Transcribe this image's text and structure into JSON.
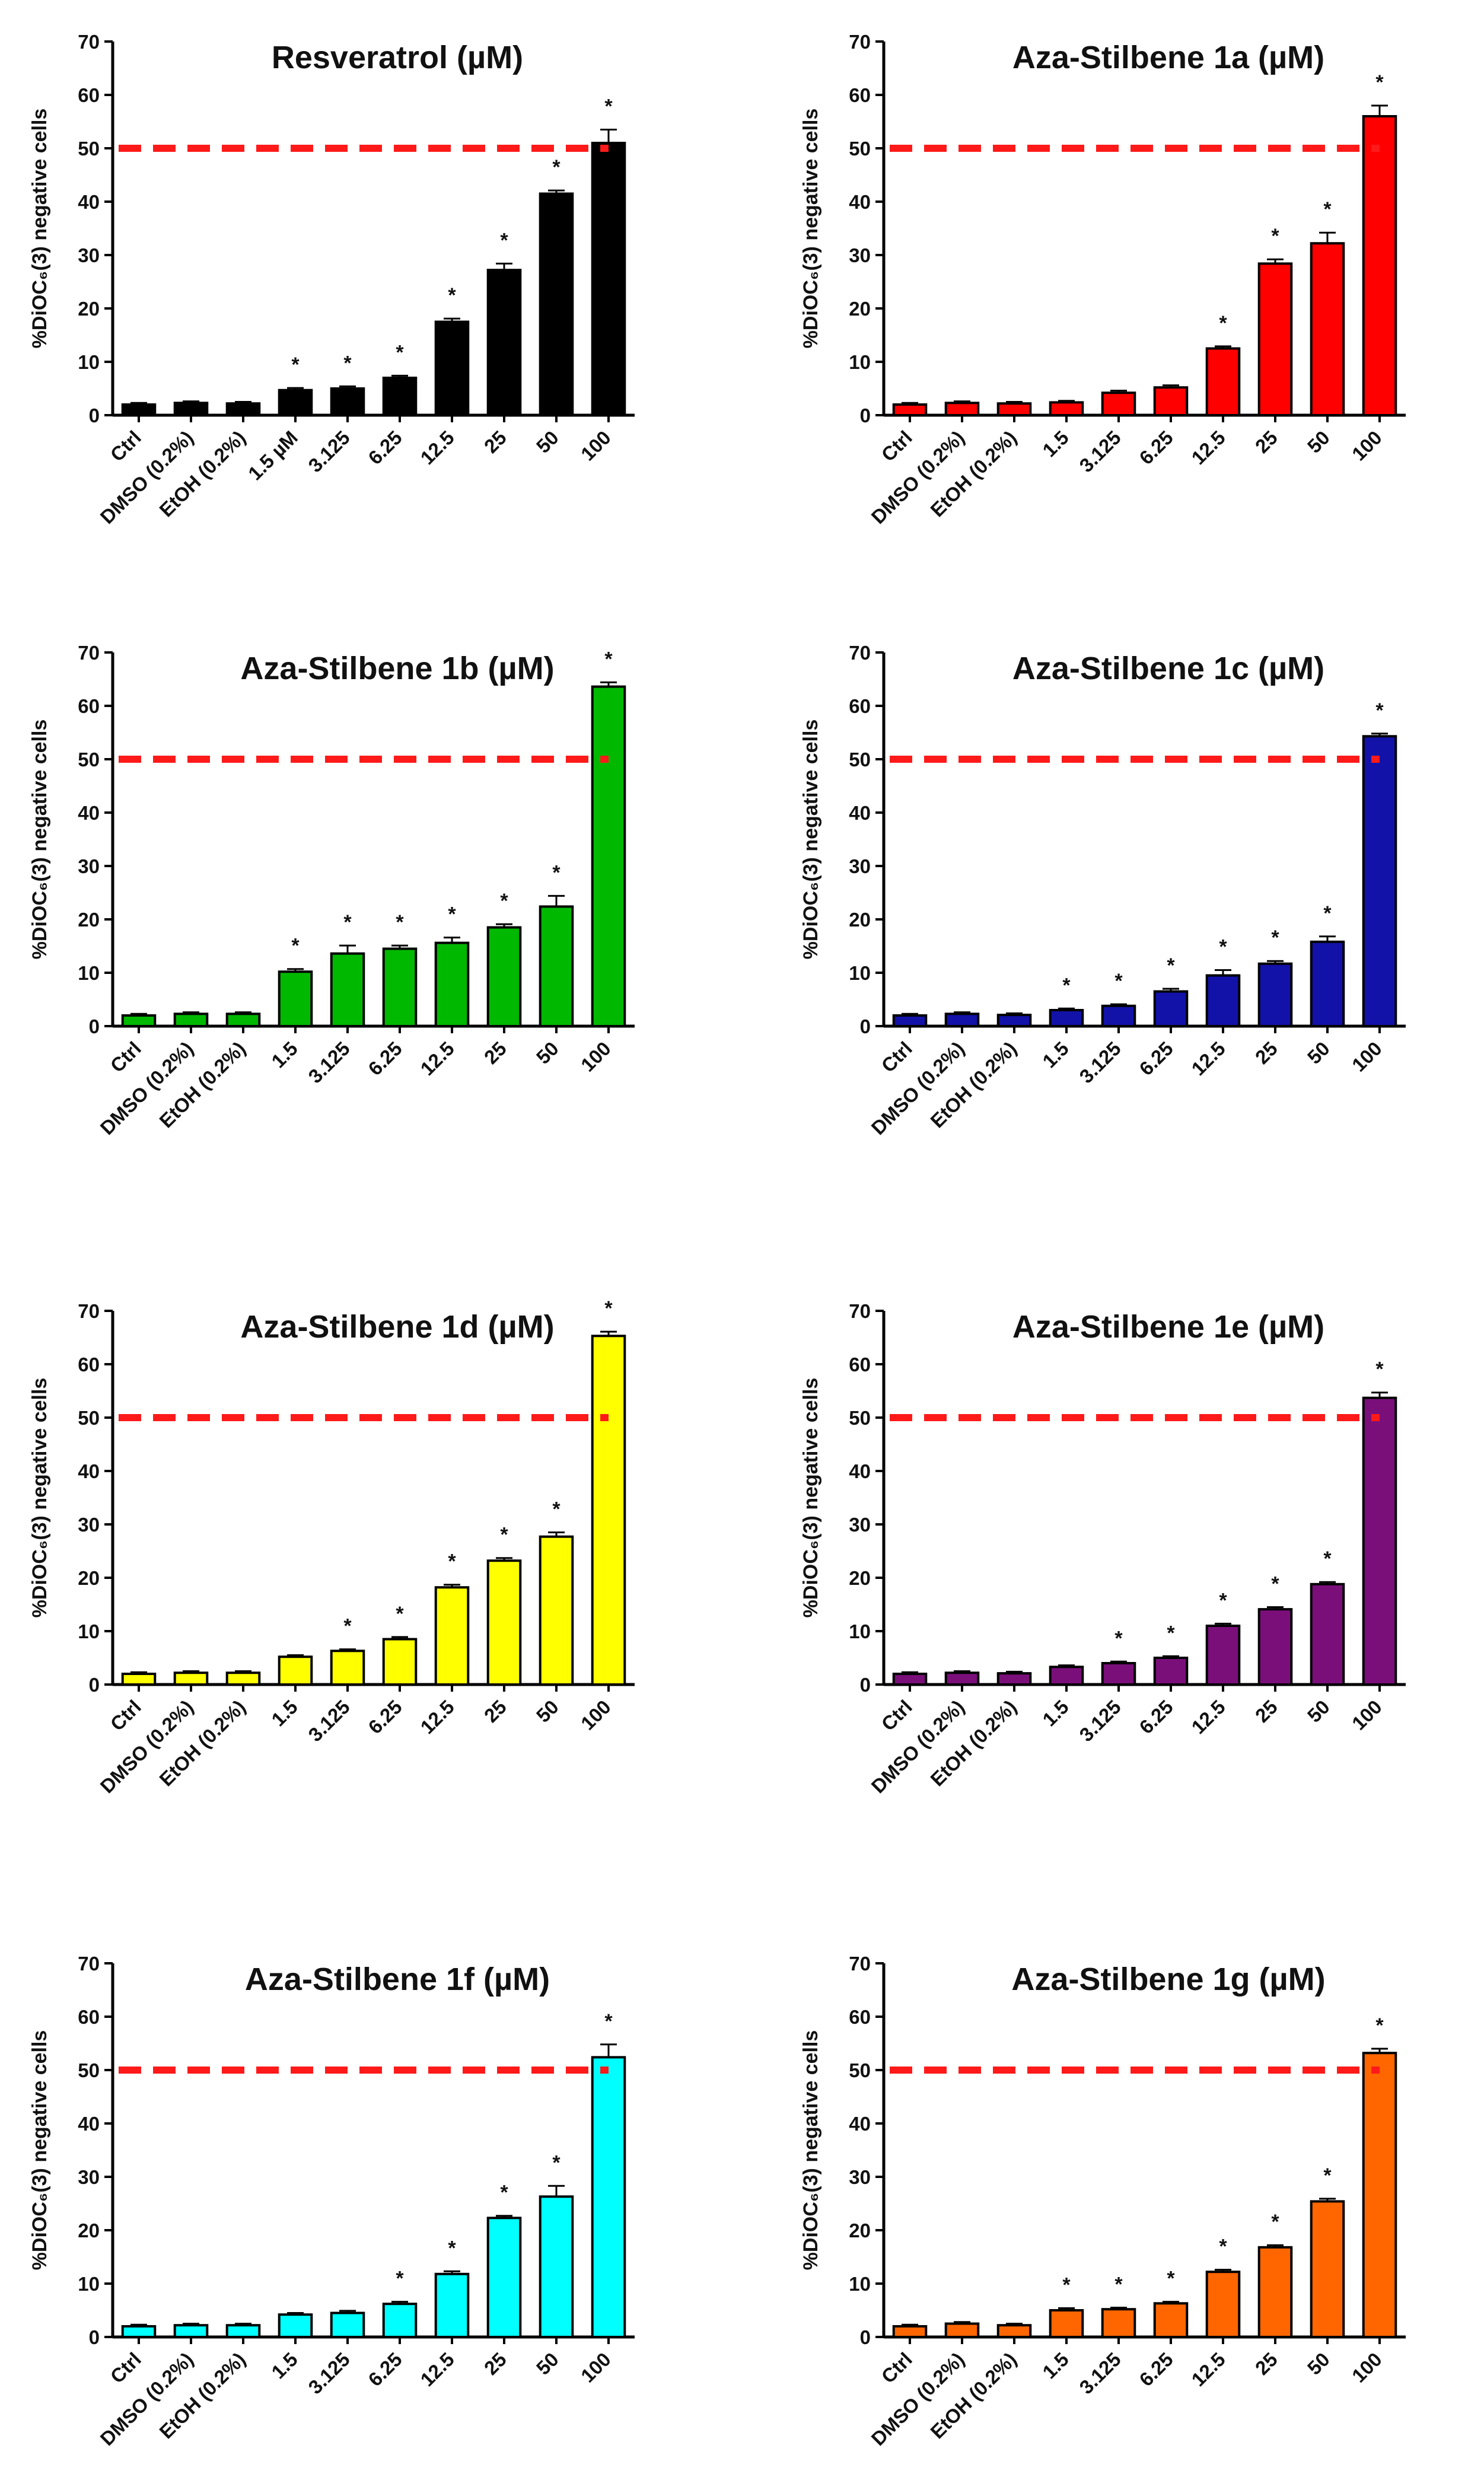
{
  "figure_colors": {
    "threshold": "#ff1a1a",
    "axis": "#000000",
    "error_bar": "#000000"
  },
  "chart_data": [
    {
      "type": "bar",
      "title": "Resveratrol (µM)",
      "ylabel": "%DiOC₆(3) negative cells",
      "xlabel": "",
      "ylim": [
        0,
        70
      ],
      "yticks": [
        0,
        10,
        20,
        30,
        40,
        50,
        60,
        70
      ],
      "threshold": 50,
      "color": "#000000",
      "categories": [
        "Ctrl",
        "DMSO (0.2%)",
        "EtOH (0.2%)",
        "1.5 µM",
        "3.125",
        "6.25",
        "12.5",
        "25",
        "50",
        "100"
      ],
      "values": [
        2.0,
        2.3,
        2.2,
        4.7,
        5.0,
        7.0,
        17.5,
        27.2,
        41.5,
        51.0
      ],
      "errors": [
        0.3,
        0.3,
        0.3,
        0.4,
        0.4,
        0.4,
        0.6,
        1.2,
        0.6,
        2.5
      ],
      "significance": [
        "",
        "",
        "",
        "*",
        "*",
        "*",
        "*",
        "*",
        "*",
        "*"
      ]
    },
    {
      "type": "bar",
      "title": "Aza-Stilbene 1a (µM)",
      "ylabel": "%DiOC₆(3) negative cells",
      "xlabel": "",
      "ylim": [
        0,
        70
      ],
      "yticks": [
        0,
        10,
        20,
        30,
        40,
        50,
        60,
        70
      ],
      "threshold": 50,
      "color": "#ff0000",
      "categories": [
        "Ctrl",
        "DMSO (0.2%)",
        "EtOH (0.2%)",
        "1.5",
        "3.125",
        "6.25",
        "12.5",
        "25",
        "50",
        "100"
      ],
      "values": [
        2.0,
        2.3,
        2.2,
        2.4,
        4.2,
        5.2,
        12.5,
        28.4,
        32.2,
        56.0
      ],
      "errors": [
        0.3,
        0.3,
        0.3,
        0.3,
        0.4,
        0.4,
        0.4,
        0.8,
        2.0,
        2.0
      ],
      "significance": [
        "",
        "",
        "",
        "",
        "",
        "",
        "*",
        "*",
        "*",
        "*"
      ]
    },
    {
      "type": "bar",
      "title": "Aza-Stilbene 1b (µM)",
      "ylabel": "%DiOC₆(3) negative cells",
      "xlabel": "",
      "ylim": [
        0,
        70
      ],
      "yticks": [
        0,
        10,
        20,
        30,
        40,
        50,
        60,
        70
      ],
      "threshold": 50,
      "color": "#00b800",
      "categories": [
        "Ctrl",
        "DMSO (0.2%)",
        "EtOH (0.2%)",
        "1.5",
        "3.125",
        "6.25",
        "12.5",
        "25",
        "50",
        "100"
      ],
      "values": [
        2.0,
        2.3,
        2.3,
        10.2,
        13.6,
        14.5,
        15.6,
        18.5,
        22.4,
        63.6
      ],
      "errors": [
        0.3,
        0.3,
        0.3,
        0.5,
        1.5,
        0.6,
        1.0,
        0.6,
        2.0,
        0.8
      ],
      "significance": [
        "",
        "",
        "",
        "*",
        "*",
        "*",
        "*",
        "*",
        "*",
        "*"
      ]
    },
    {
      "type": "bar",
      "title": "Aza-Stilbene 1c (µM)",
      "ylabel": "%DiOC₆(3) negative cells",
      "xlabel": "",
      "ylim": [
        0,
        70
      ],
      "yticks": [
        0,
        10,
        20,
        30,
        40,
        50,
        60,
        70
      ],
      "threshold": 50,
      "color": "#1212a8",
      "categories": [
        "Ctrl",
        "DMSO (0.2%)",
        "EtOH (0.2%)",
        "1.5",
        "3.125",
        "6.25",
        "12.5",
        "25",
        "50",
        "100"
      ],
      "values": [
        2.0,
        2.3,
        2.1,
        3.0,
        3.8,
        6.5,
        9.5,
        11.7,
        15.8,
        54.3
      ],
      "errors": [
        0.3,
        0.3,
        0.3,
        0.3,
        0.3,
        0.5,
        1.0,
        0.5,
        1.0,
        0.5
      ],
      "significance": [
        "",
        "",
        "",
        "*",
        "*",
        "*",
        "*",
        "*",
        "*",
        "*"
      ]
    },
    {
      "type": "bar",
      "title": "Aza-Stilbene 1d (µM)",
      "ylabel": "%DiOC₆(3) negative cells",
      "xlabel": "",
      "ylim": [
        0,
        70
      ],
      "yticks": [
        0,
        10,
        20,
        30,
        40,
        50,
        60,
        70
      ],
      "threshold": 50,
      "color": "#ffff00",
      "categories": [
        "Ctrl",
        "DMSO (0.2%)",
        "EtOH (0.2%)",
        "1.5",
        "3.125",
        "6.25",
        "12.5",
        "25",
        "50",
        "100"
      ],
      "values": [
        2.0,
        2.2,
        2.2,
        5.2,
        6.3,
        8.5,
        18.2,
        23.2,
        27.7,
        65.3
      ],
      "errors": [
        0.3,
        0.3,
        0.3,
        0.3,
        0.3,
        0.4,
        0.5,
        0.5,
        0.8,
        0.8
      ],
      "significance": [
        "",
        "",
        "",
        "",
        "*",
        "*",
        "*",
        "*",
        "*",
        "*"
      ]
    },
    {
      "type": "bar",
      "title": "Aza-Stilbene 1e (µM)",
      "ylabel": "%DiOC₆(3) negative cells",
      "xlabel": "",
      "ylim": [
        0,
        70
      ],
      "yticks": [
        0,
        10,
        20,
        30,
        40,
        50,
        60,
        70
      ],
      "threshold": 50,
      "color": "#7a0f7a",
      "categories": [
        "Ctrl",
        "DMSO (0.2%)",
        "EtOH (0.2%)",
        "1.5",
        "3.125",
        "6.25",
        "12.5",
        "25",
        "50",
        "100"
      ],
      "values": [
        2.0,
        2.2,
        2.1,
        3.3,
        4.0,
        5.0,
        11.0,
        14.1,
        18.8,
        53.7
      ],
      "errors": [
        0.3,
        0.3,
        0.3,
        0.3,
        0.3,
        0.3,
        0.4,
        0.4,
        0.4,
        1.0
      ],
      "significance": [
        "",
        "",
        "",
        "",
        "*",
        "*",
        "*",
        "*",
        "*",
        "*"
      ]
    },
    {
      "type": "bar",
      "title": "Aza-Stilbene 1f (µM)",
      "ylabel": "%DiOC₆(3) negative cells",
      "xlabel": "",
      "ylim": [
        0,
        70
      ],
      "yticks": [
        0,
        10,
        20,
        30,
        40,
        50,
        60,
        70
      ],
      "threshold": 50,
      "color": "#00ffff",
      "categories": [
        "Ctrl",
        "DMSO (0.2%)",
        "EtOH (0.2%)",
        "1.5",
        "3.125",
        "6.25",
        "12.5",
        "25",
        "50",
        "100"
      ],
      "values": [
        2.0,
        2.2,
        2.2,
        4.2,
        4.5,
        6.2,
        11.8,
        22.3,
        26.3,
        52.4
      ],
      "errors": [
        0.3,
        0.3,
        0.3,
        0.3,
        0.4,
        0.4,
        0.5,
        0.4,
        2.0,
        2.4
      ],
      "significance": [
        "",
        "",
        "",
        "",
        "",
        "*",
        "*",
        "*",
        "*",
        "*"
      ]
    },
    {
      "type": "bar",
      "title": "Aza-Stilbene 1g (µM)",
      "ylabel": "%DiOC₆(3) negative cells",
      "xlabel": "",
      "ylim": [
        0,
        70
      ],
      "yticks": [
        0,
        10,
        20,
        30,
        40,
        50,
        60,
        70
      ],
      "threshold": 50,
      "color": "#ff6600",
      "categories": [
        "Ctrl",
        "DMSO (0.2%)",
        "EtOH (0.2%)",
        "1.5",
        "3.125",
        "6.25",
        "12.5",
        "25",
        "50",
        "100"
      ],
      "values": [
        2.0,
        2.5,
        2.2,
        5.0,
        5.2,
        6.3,
        12.2,
        16.8,
        25.4,
        53.2
      ],
      "errors": [
        0.3,
        0.3,
        0.3,
        0.4,
        0.3,
        0.3,
        0.4,
        0.4,
        0.5,
        0.8
      ],
      "significance": [
        "",
        "",
        "",
        "*",
        "*",
        "*",
        "*",
        "*",
        "*",
        "*"
      ]
    }
  ]
}
